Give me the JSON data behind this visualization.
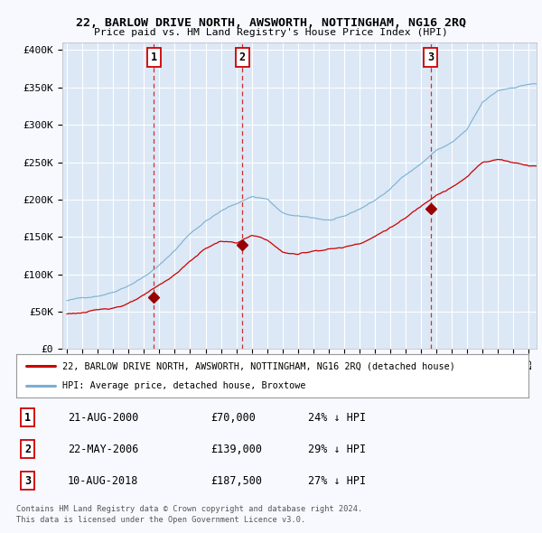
{
  "title": "22, BARLOW DRIVE NORTH, AWSWORTH, NOTTINGHAM, NG16 2RQ",
  "subtitle": "Price paid vs. HM Land Registry's House Price Index (HPI)",
  "background_color": "#f7f9ff",
  "plot_background": "#dce8f5",
  "legend_entries": [
    "22, BARLOW DRIVE NORTH, AWSWORTH, NOTTINGHAM, NG16 2RQ (detached house)",
    "HPI: Average price, detached house, Broxtowe"
  ],
  "red_line_color": "#cc0000",
  "blue_line_color": "#7ab0d4",
  "sale_markers": [
    {
      "label": "1",
      "date": "21-AUG-2000",
      "price": "£70,000",
      "pct": "24%",
      "x_year": 2000.64,
      "y_val": 70000
    },
    {
      "label": "2",
      "date": "22-MAY-2006",
      "price": "£139,000",
      "pct": "29%",
      "x_year": 2006.39,
      "y_val": 139000
    },
    {
      "label": "3",
      "date": "10-AUG-2018",
      "price": "£187,500",
      "pct": "27%",
      "x_year": 2018.61,
      "y_val": 187500
    }
  ],
  "footer_line1": "Contains HM Land Registry data © Crown copyright and database right 2024.",
  "footer_line2": "This data is licensed under the Open Government Licence v3.0.",
  "ylim": [
    0,
    410000
  ],
  "yticks": [
    0,
    50000,
    100000,
    150000,
    200000,
    250000,
    300000,
    350000,
    400000
  ],
  "ytick_labels": [
    "£0",
    "£50K",
    "£100K",
    "£150K",
    "£200K",
    "£250K",
    "£300K",
    "£350K",
    "£400K"
  ],
  "xlim_start": 1994.7,
  "xlim_end": 2025.5,
  "hpi_waypoints_x": [
    1995,
    1996,
    1997,
    1998,
    1999,
    2000,
    2001,
    2002,
    2003,
    2004,
    2005,
    2006,
    2007,
    2008,
    2009,
    2010,
    2011,
    2012,
    2013,
    2014,
    2015,
    2016,
    2017,
    2018,
    2019,
    2020,
    2021,
    2022,
    2023,
    2024,
    2025
  ],
  "hpi_waypoints_y": [
    65000,
    68000,
    72000,
    78000,
    88000,
    100000,
    115000,
    135000,
    158000,
    175000,
    188000,
    198000,
    208000,
    205000,
    185000,
    180000,
    178000,
    175000,
    178000,
    188000,
    200000,
    215000,
    235000,
    250000,
    268000,
    278000,
    295000,
    330000,
    345000,
    350000,
    355000
  ],
  "prop_waypoints_x": [
    1995,
    1996,
    1997,
    1998,
    1999,
    2000,
    2001,
    2002,
    2003,
    2004,
    2005,
    2006,
    2007,
    2008,
    2009,
    2010,
    2011,
    2012,
    2013,
    2014,
    2015,
    2016,
    2017,
    2018,
    2019,
    2020,
    2021,
    2022,
    2023,
    2024,
    2025
  ],
  "prop_waypoints_y": [
    47000,
    49000,
    51000,
    55000,
    61000,
    70000,
    83000,
    97000,
    115000,
    132000,
    142000,
    139000,
    148000,
    142000,
    125000,
    122000,
    127000,
    130000,
    132000,
    138000,
    148000,
    160000,
    172000,
    187500,
    205000,
    215000,
    228000,
    248000,
    252000,
    248000,
    245000
  ]
}
